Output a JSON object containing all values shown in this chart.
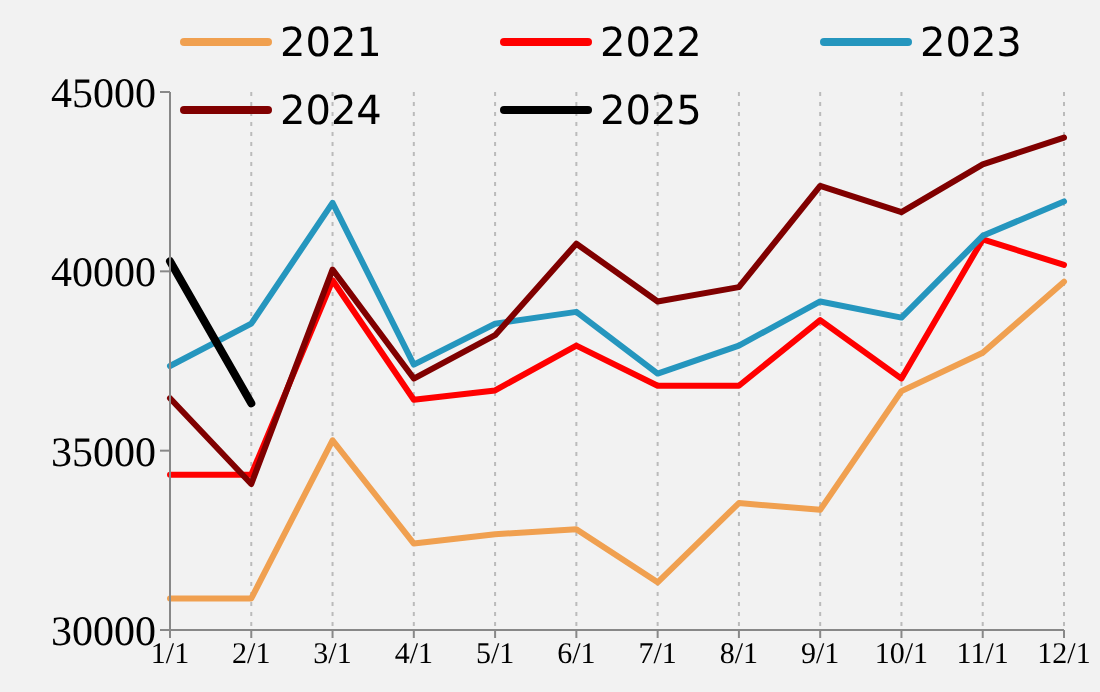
{
  "chart_data": {
    "type": "line",
    "categories": [
      "1/1",
      "2/1",
      "3/1",
      "4/1",
      "5/1",
      "6/1",
      "7/1",
      "8/1",
      "9/1",
      "10/1",
      "11/1",
      "12/1"
    ],
    "series": [
      {
        "name": "2021",
        "color": "#f0a050",
        "values": [
          30880,
          30880,
          35290,
          32410,
          32670,
          32810,
          31330,
          33540,
          33350,
          36660,
          37730,
          39710
        ]
      },
      {
        "name": "2022",
        "color": "#ff0000",
        "values": [
          34330,
          34330,
          39750,
          36420,
          36680,
          37930,
          36810,
          36810,
          38640,
          37010,
          40890,
          40180
        ]
      },
      {
        "name": "2023",
        "color": "#2596be",
        "values": [
          37360,
          38540,
          41910,
          37400,
          38540,
          38870,
          37150,
          37930,
          39160,
          38710,
          40990,
          41950
        ]
      },
      {
        "name": "2024",
        "color": "#800000",
        "values": [
          36460,
          34070,
          40050,
          37010,
          38220,
          40770,
          39160,
          39560,
          42380,
          41650,
          42980,
          43730
        ]
      },
      {
        "name": "2025",
        "color": "#000000",
        "values": [
          40280,
          36320,
          null,
          null,
          null,
          null,
          null,
          null,
          null,
          null,
          null,
          null
        ]
      }
    ],
    "ylim": [
      30000,
      45000
    ],
    "yticks": [
      30000,
      35000,
      40000,
      45000
    ],
    "grid": "x",
    "legend": "top",
    "marker": "none",
    "line_style": "solid"
  }
}
